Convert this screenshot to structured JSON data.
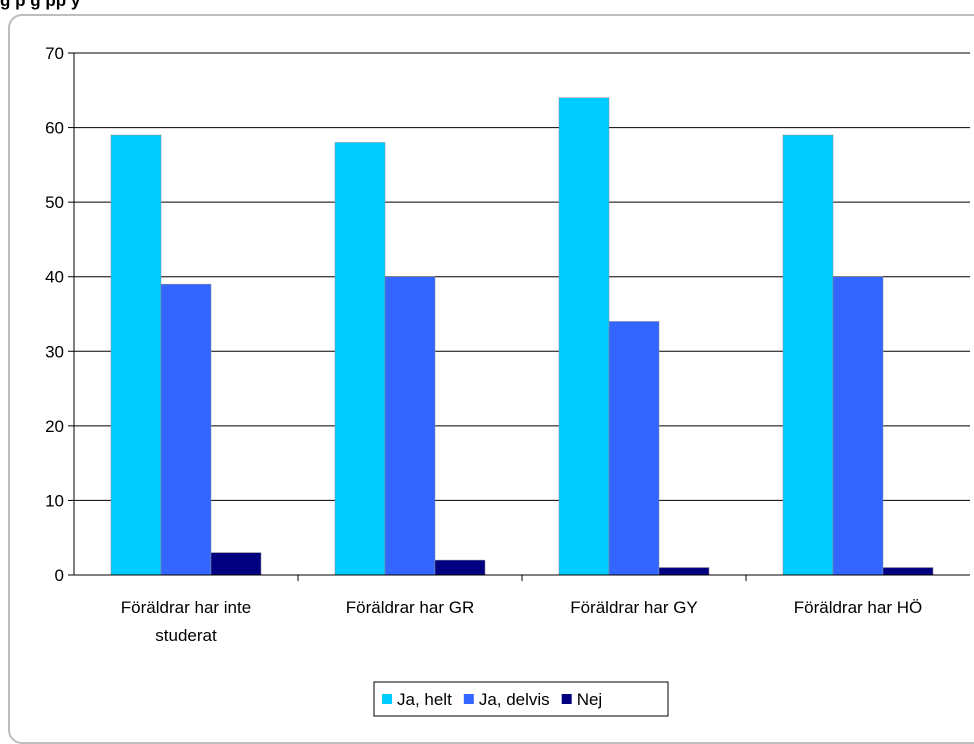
{
  "header": {
    "title_partial": "g          p  g     pp           y"
  },
  "chart_data": {
    "type": "bar",
    "categories": [
      [
        "Föräldrar har inte",
        "studerat"
      ],
      [
        "Föräldrar har GR"
      ],
      [
        "Föräldrar har GY"
      ],
      [
        "Föräldrar har HÖ"
      ]
    ],
    "series": [
      {
        "name": "Ja, helt",
        "color": "#00CCFF",
        "values": [
          59,
          58,
          64,
          59
        ]
      },
      {
        "name": "Ja, delvis",
        "color": "#3366FF",
        "values": [
          39,
          40,
          34,
          40
        ]
      },
      {
        "name": "Nej",
        "color": "#000080",
        "values": [
          3,
          2,
          1,
          1
        ]
      }
    ],
    "ylim": [
      0,
      70
    ],
    "yticks": [
      0,
      10,
      20,
      30,
      40,
      50,
      60,
      70
    ],
    "grid": true,
    "legend": "bottom-center"
  }
}
